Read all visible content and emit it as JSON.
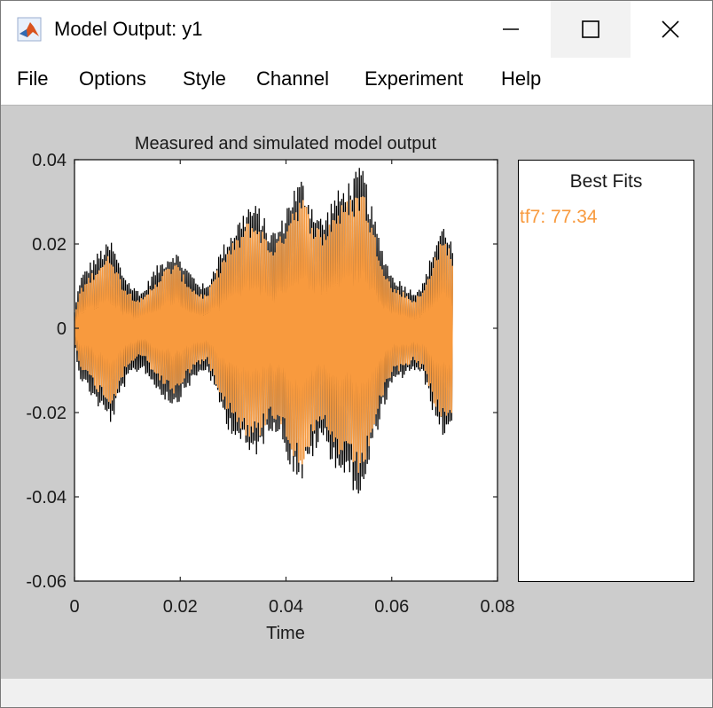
{
  "window": {
    "title": "Model Output: y1",
    "controls": [
      "minimize",
      "maximize",
      "close"
    ]
  },
  "menu": {
    "items": [
      "File",
      "Options",
      "Style",
      "Channel",
      "Experiment",
      "Help"
    ]
  },
  "chart_data": {
    "type": "line",
    "title": "Measured and simulated model output",
    "xlabel": "Time",
    "ylabel": "",
    "xlim": [
      0,
      0.08
    ],
    "ylim": [
      -0.06,
      0.04
    ],
    "xticks": [
      0,
      0.02,
      0.04,
      0.06,
      0.08
    ],
    "xtick_labels": [
      "0",
      "0.02",
      "0.04",
      "0.06",
      "0.08"
    ],
    "yticks": [
      -0.06,
      -0.04,
      -0.02,
      0,
      0.02,
      0.04
    ],
    "ytick_labels": [
      "-0.06",
      "-0.04",
      "-0.02",
      "0",
      "0.02",
      "0.04"
    ],
    "grid": false,
    "series": [
      {
        "role": "measured",
        "color": "#000000",
        "envelope": {
          "x": [
            0,
            0.001,
            0.003,
            0.005,
            0.007,
            0.009,
            0.011,
            0.013,
            0.015,
            0.017,
            0.019,
            0.021,
            0.023,
            0.025,
            0.027,
            0.029,
            0.031,
            0.033,
            0.035,
            0.037,
            0.039,
            0.041,
            0.043,
            0.045,
            0.047,
            0.049,
            0.051,
            0.053,
            0.0545,
            0.056,
            0.058,
            0.06,
            0.062,
            0.064,
            0.066,
            0.068,
            0.0695,
            0.0705,
            0.0715
          ],
          "upper": [
            0.004,
            0.012,
            0.016,
            0.019,
            0.021,
            0.014,
            0.01,
            0.009,
            0.014,
            0.017,
            0.019,
            0.015,
            0.012,
            0.01,
            0.017,
            0.022,
            0.026,
            0.03,
            0.029,
            0.023,
            0.025,
            0.033,
            0.036,
            0.03,
            0.026,
            0.032,
            0.034,
            0.037,
            0.039,
            0.03,
            0.02,
            0.013,
            0.011,
            0.009,
            0.011,
            0.02,
            0.025,
            0.024,
            0.02
          ],
          "lower": [
            -0.004,
            -0.012,
            -0.016,
            -0.02,
            -0.023,
            -0.015,
            -0.011,
            -0.01,
            -0.014,
            -0.017,
            -0.019,
            -0.015,
            -0.012,
            -0.01,
            -0.017,
            -0.024,
            -0.027,
            -0.031,
            -0.03,
            -0.024,
            -0.026,
            -0.034,
            -0.037,
            -0.031,
            -0.027,
            -0.033,
            -0.036,
            -0.039,
            -0.042,
            -0.031,
            -0.021,
            -0.014,
            -0.012,
            -0.01,
            -0.012,
            -0.021,
            -0.026,
            -0.025,
            -0.024
          ]
        }
      },
      {
        "role": "simulated",
        "name": "tf7",
        "color": "#f89a3e",
        "envelope": {
          "x": [
            0,
            0.001,
            0.003,
            0.005,
            0.007,
            0.009,
            0.011,
            0.013,
            0.015,
            0.017,
            0.019,
            0.021,
            0.023,
            0.025,
            0.027,
            0.029,
            0.031,
            0.033,
            0.035,
            0.037,
            0.039,
            0.041,
            0.043,
            0.045,
            0.047,
            0.049,
            0.051,
            0.053,
            0.0545,
            0.056,
            0.058,
            0.06,
            0.062,
            0.064,
            0.066,
            0.068,
            0.0695,
            0.0705,
            0.0715
          ],
          "upper": [
            0.003,
            0.009,
            0.013,
            0.016,
            0.018,
            0.011,
            0.008,
            0.007,
            0.011,
            0.014,
            0.016,
            0.012,
            0.009,
            0.008,
            0.014,
            0.019,
            0.022,
            0.026,
            0.025,
            0.02,
            0.022,
            0.029,
            0.032,
            0.026,
            0.023,
            0.028,
            0.03,
            0.032,
            0.034,
            0.026,
            0.017,
            0.01,
            0.009,
            0.007,
            0.009,
            0.017,
            0.021,
            0.021,
            0.017
          ],
          "lower": [
            -0.003,
            -0.009,
            -0.013,
            -0.016,
            -0.019,
            -0.012,
            -0.008,
            -0.007,
            -0.011,
            -0.014,
            -0.016,
            -0.012,
            -0.009,
            -0.008,
            -0.014,
            -0.02,
            -0.023,
            -0.027,
            -0.026,
            -0.021,
            -0.023,
            -0.03,
            -0.033,
            -0.027,
            -0.024,
            -0.029,
            -0.032,
            -0.034,
            -0.036,
            -0.027,
            -0.018,
            -0.011,
            -0.01,
            -0.008,
            -0.01,
            -0.018,
            -0.022,
            -0.022,
            -0.02
          ]
        }
      }
    ]
  },
  "best_fits": {
    "title": "Best Fits",
    "entries": [
      {
        "label": "tf7: 77.34",
        "color": "#f89a3e"
      }
    ]
  }
}
